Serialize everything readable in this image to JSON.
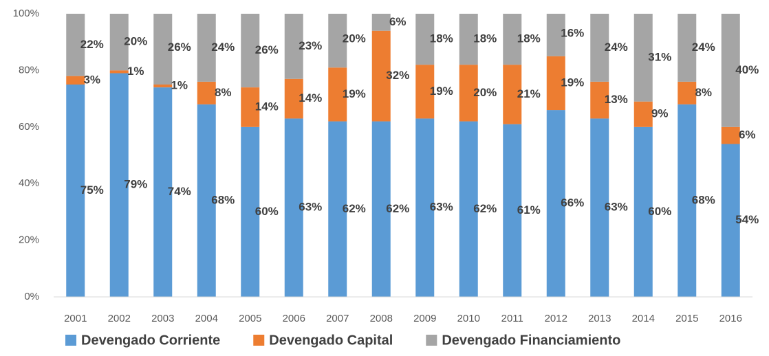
{
  "chart_data": {
    "type": "stacked_bar",
    "categories": [
      "2001",
      "2002",
      "2003",
      "2004",
      "2005",
      "2006",
      "2007",
      "2008",
      "2009",
      "2010",
      "2011",
      "2012",
      "2013",
      "2014",
      "2015",
      "2016"
    ],
    "series": [
      {
        "name": "Devengado Corriente",
        "color": "#5b9bd5",
        "values": [
          75,
          79,
          74,
          68,
          60,
          63,
          62,
          62,
          63,
          62,
          61,
          66,
          63,
          60,
          68,
          54
        ],
        "value_labels": [
          "75%",
          "79%",
          "74%",
          "68%",
          "60%",
          "63%",
          "62%",
          "62%",
          "63%",
          "62%",
          "61%",
          "66%",
          "63%",
          "60%",
          "68%",
          "54%"
        ]
      },
      {
        "name": "Devengado Capital",
        "color": "#ed7d31",
        "values": [
          3,
          1,
          1,
          8,
          14,
          14,
          19,
          32,
          19,
          20,
          21,
          19,
          13,
          9,
          8,
          6
        ],
        "value_labels": [
          "3%",
          "1%",
          "1%",
          "8%",
          "14%",
          "14%",
          "19%",
          "32%",
          "19%",
          "20%",
          "21%",
          "19%",
          "13%",
          "9%",
          "8%",
          "6%"
        ]
      },
      {
        "name": "Devengado Financiamiento",
        "color": "#a5a5a5",
        "values": [
          22,
          20,
          26,
          24,
          26,
          23,
          20,
          6,
          18,
          18,
          18,
          16,
          24,
          31,
          24,
          40
        ],
        "value_labels": [
          "22%",
          "20%",
          "26%",
          "24%",
          "26%",
          "23%",
          "20%",
          "6%",
          "18%",
          "18%",
          "18%",
          "16%",
          "24%",
          "31%",
          "24%",
          "40%"
        ]
      }
    ],
    "ylim": [
      0,
      100
    ],
    "yticks": [
      {
        "value": 0,
        "label": "0%"
      },
      {
        "value": 20,
        "label": "20%"
      },
      {
        "value": 40,
        "label": "40%"
      },
      {
        "value": 60,
        "label": "60%"
      },
      {
        "value": 80,
        "label": "80%"
      },
      {
        "value": 100,
        "label": "100%"
      }
    ],
    "grid": false,
    "legend": "bottom"
  }
}
